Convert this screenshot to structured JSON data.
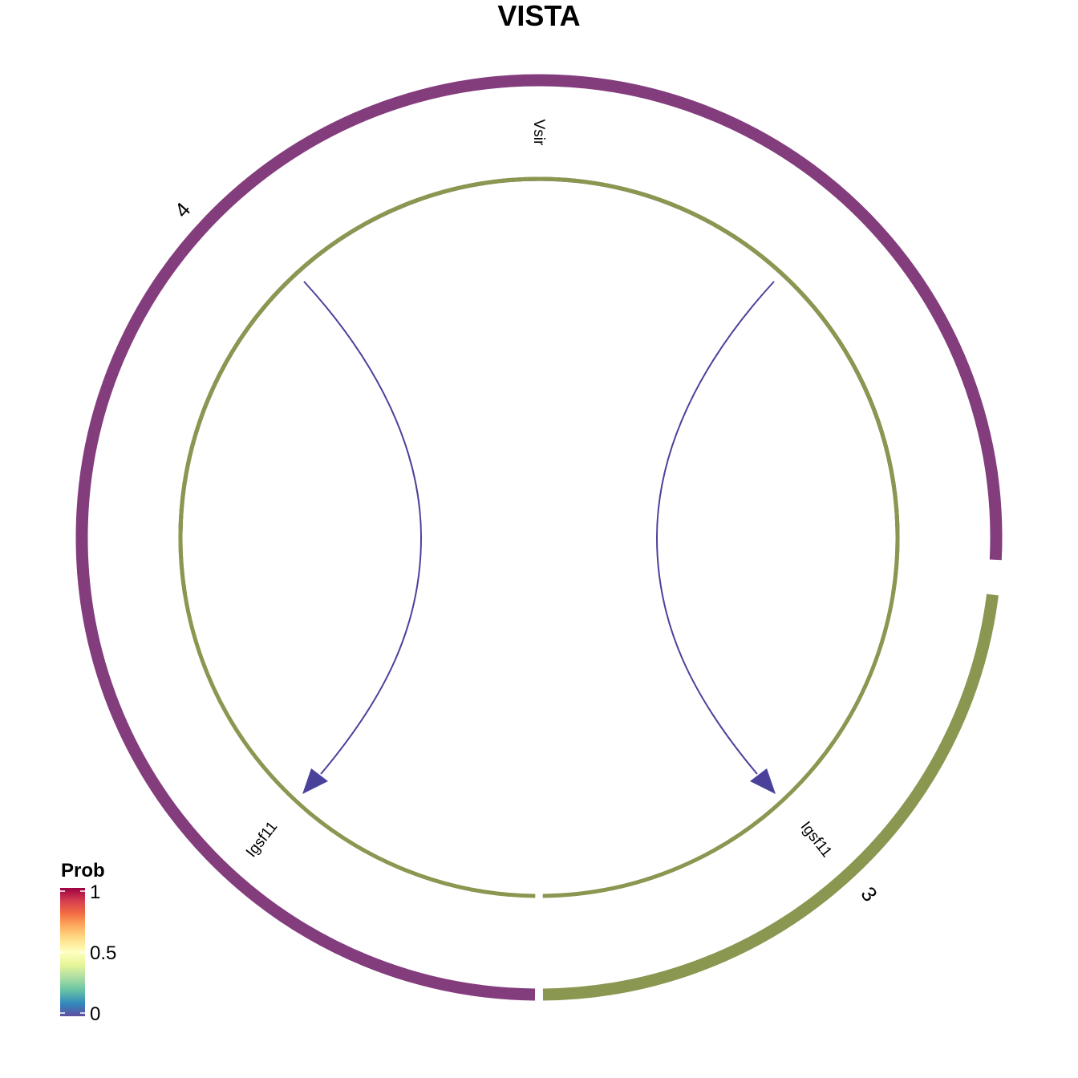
{
  "title": "VISTA",
  "colors": {
    "group_4": "#833D7D",
    "group_3": "#8A9751",
    "edge": "#4A429A",
    "text": "#000000"
  },
  "groups": [
    {
      "id": "g4",
      "label": "4",
      "color_key": "group_4"
    },
    {
      "id": "g3",
      "label": "3",
      "color_key": "group_3"
    }
  ],
  "genes": [
    {
      "id": "vsir",
      "label": "Vsir",
      "group": "4"
    },
    {
      "id": "igsf11_left",
      "label": "Igsf11",
      "group": "3"
    },
    {
      "id": "igsf11_right",
      "label": "Igsf11",
      "group": "3"
    }
  ],
  "edges": [
    {
      "from": "Vsir",
      "to": "Igsf11",
      "prob": 0
    },
    {
      "from": "Vsir",
      "to": "Igsf11",
      "prob": 0
    }
  ],
  "legend": {
    "title": "Prob",
    "tick_labels": [
      "1",
      "0.5",
      "0"
    ],
    "palette": "Spectral",
    "stops": [
      "#9E0142",
      "#D53E4F",
      "#F46D43",
      "#FDAE61",
      "#FEE08B",
      "#FFFFBF",
      "#E6F598",
      "#ABDDA4",
      "#66C2A5",
      "#3288BD",
      "#5E4FA2"
    ]
  }
}
